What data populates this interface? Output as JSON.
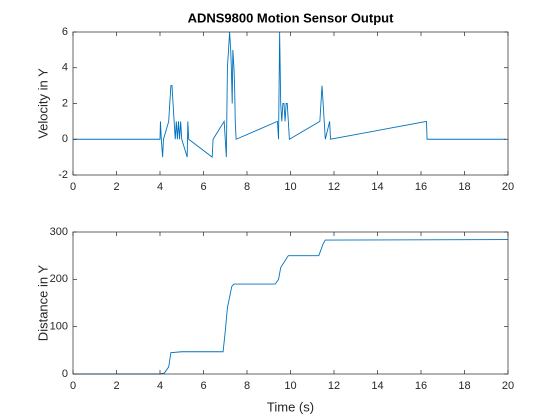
{
  "chart_data": [
    {
      "type": "line",
      "title": "ADNS9800 Motion Sensor Output",
      "y_label": "Velocity in Y",
      "color": "#0072bd",
      "x": [
        0,
        4.0,
        4.02,
        4.06,
        4.12,
        4.16,
        4.4,
        4.45,
        4.5,
        4.55,
        4.6,
        4.65,
        4.7,
        4.75,
        4.8,
        4.85,
        4.9,
        4.95,
        5.0,
        5.25,
        5.28,
        5.32,
        6.4,
        6.44,
        6.95,
        7.0,
        7.05,
        7.1,
        7.15,
        7.2,
        7.25,
        7.28,
        7.32,
        7.35,
        7.4,
        7.43,
        7.46,
        7.5,
        9.4,
        9.45,
        9.5,
        9.55,
        9.6,
        9.65,
        9.7,
        9.75,
        9.8,
        9.85,
        9.9,
        9.95,
        11.35,
        11.4,
        11.45,
        11.5,
        11.55,
        11.6,
        11.8,
        11.84,
        16.25,
        16.28,
        19.9
      ],
      "values": [
        0,
        0,
        1,
        0,
        -1,
        0,
        1,
        2,
        3,
        3,
        2,
        1,
        0,
        1,
        0,
        1,
        0,
        1,
        0,
        -1,
        1,
        0,
        -1,
        0,
        1,
        0,
        -1,
        4,
        5,
        6,
        5,
        4,
        2,
        5,
        4,
        3,
        1,
        0,
        1,
        0,
        6,
        2,
        1,
        2,
        2,
        1,
        2,
        2,
        1,
        0,
        1,
        2,
        3,
        2,
        1,
        0,
        1,
        0,
        1,
        0,
        0
      ],
      "xlim": [
        0,
        20
      ],
      "xticks": [
        0,
        2,
        4,
        6,
        8,
        10,
        12,
        14,
        16,
        18,
        20
      ],
      "ylim": [
        -2,
        6
      ],
      "yticks": [
        -2,
        0,
        2,
        4,
        6
      ]
    },
    {
      "type": "line",
      "x_label": "Time (s)",
      "y_label": "Distance in Y",
      "color": "#0072bd",
      "x": [
        0,
        4.0,
        4.2,
        4.4,
        4.5,
        5.0,
        6.9,
        7.0,
        7.1,
        7.3,
        7.4,
        9.3,
        9.45,
        9.55,
        9.9,
        11.3,
        11.5,
        11.6,
        20
      ],
      "values": [
        0,
        0,
        2,
        15,
        45,
        47,
        47,
        90,
        140,
        185,
        190,
        190,
        200,
        225,
        250,
        250,
        275,
        283,
        284
      ],
      "xlim": [
        0,
        20
      ],
      "xticks": [
        0,
        2,
        4,
        6,
        8,
        10,
        12,
        14,
        16,
        18,
        20
      ],
      "ylim": [
        0,
        300
      ],
      "yticks": [
        0,
        100,
        200,
        300
      ]
    }
  ]
}
